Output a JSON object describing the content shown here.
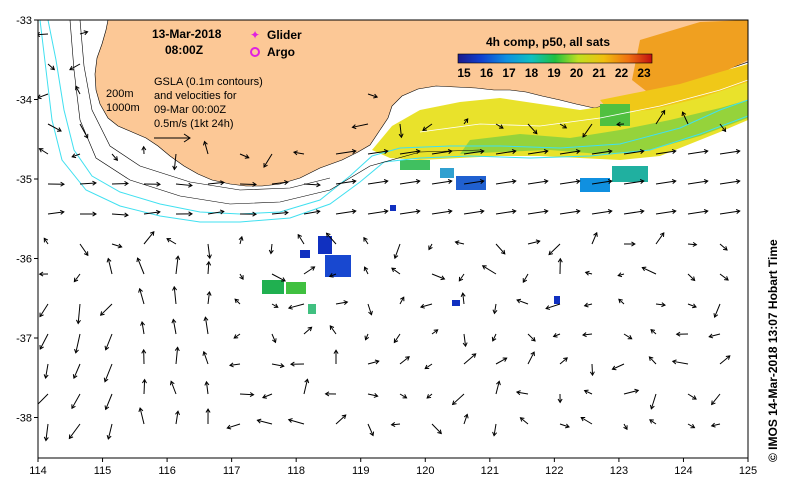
{
  "header": {
    "date": "13-Mar-2018",
    "time": "08:00Z"
  },
  "legend": {
    "glider": "Glider",
    "argo": "Argo",
    "glider_color": "#e020e0",
    "argo_color": "#e020e0"
  },
  "depth": {
    "c200": "200m",
    "c1000": "1000m"
  },
  "gsla": {
    "line1": "GSLA (0.1m contours)",
    "line2": "and velocities for",
    "line3": "09-Mar 00:00Z",
    "line4": "0.5m/s (1kt 24h)"
  },
  "colorbar": {
    "title": "4h comp, p50, all sats",
    "ticks": [
      "15",
      "16",
      "17",
      "18",
      "19",
      "20",
      "21",
      "22",
      "23"
    ]
  },
  "axes": {
    "x_ticks": [
      "114",
      "115",
      "116",
      "117",
      "118",
      "119",
      "120",
      "121",
      "122",
      "123",
      "124",
      "125"
    ],
    "y_ticks": [
      "-33",
      "-34",
      "-35",
      "-36",
      "-37",
      "-38"
    ]
  },
  "side_label": "©  IMOS 14-Mar-2018 13:07 Hobart Time",
  "colors": {
    "land": "#fcc896",
    "contour": "#40e0f0",
    "sst_warm": "#f0e020",
    "sst_cool": "#1030c0"
  }
}
